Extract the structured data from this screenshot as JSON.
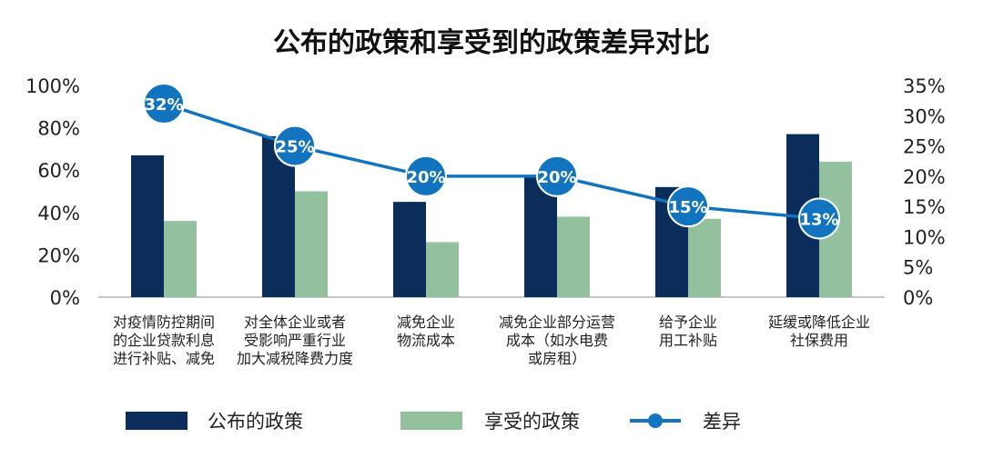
{
  "chart_data": {
    "type": "bar",
    "title": "公布的政策和享受到的政策差异对比",
    "categories": [
      [
        "对疫情防控期间",
        "的企业贷款利息",
        "进行补贴、减免"
      ],
      [
        "对全体企业或者",
        "受影响严重行业",
        "加大减税降费力度"
      ],
      [
        "减免企业",
        "物流成本"
      ],
      [
        "减免企业部分运营",
        "成本（如水电费",
        "或房租）"
      ],
      [
        "给予企业",
        "用工补贴"
      ],
      [
        "延缓或降低企业",
        "社保费用"
      ]
    ],
    "series": [
      {
        "name": "公布的政策",
        "type": "bar",
        "axis": "left",
        "color": "#0b2d5b",
        "values": [
          67,
          76,
          45,
          57,
          52,
          77
        ]
      },
      {
        "name": "享受的政策",
        "type": "bar",
        "axis": "left",
        "color": "#93c19d",
        "values": [
          36,
          50,
          26,
          38,
          37,
          64
        ]
      },
      {
        "name": "差异",
        "type": "line",
        "axis": "right",
        "color": "#1274bf",
        "values": [
          32,
          25,
          20,
          20,
          15,
          13
        ],
        "labels": [
          "32%",
          "25%",
          "20%",
          "20%",
          "15%",
          "13%"
        ]
      }
    ],
    "ylim_left": [
      0,
      100
    ],
    "yticks_left": [
      "0%",
      "20%",
      "40%",
      "60%",
      "80%",
      "100%"
    ],
    "ylim_right": [
      0,
      35
    ],
    "yticks_right": [
      "0%",
      "5%",
      "10%",
      "15%",
      "20%",
      "25%",
      "30%",
      "35%"
    ],
    "legend_position": "bottom",
    "grid": false
  }
}
